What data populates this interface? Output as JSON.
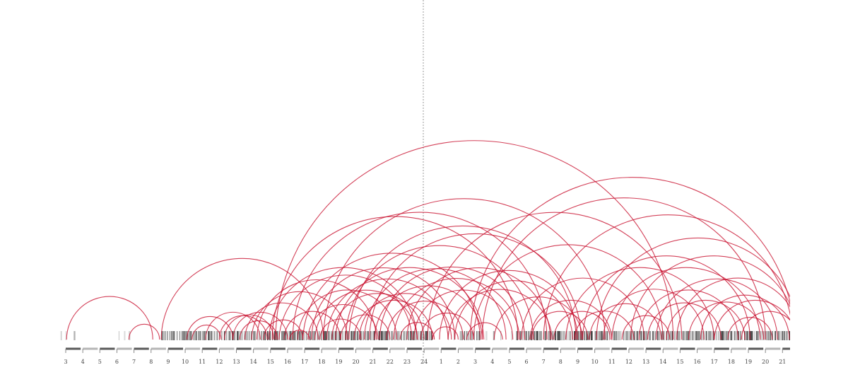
{
  "chart_data": {
    "type": "arc",
    "colors": {
      "arc": "#c8102e",
      "midline": "#9a9a9a",
      "axis_dark": "#5a5a5a",
      "axis_light": "#b5b5b5",
      "barcode": "#3a3a3a"
    },
    "hour_labels": [
      "3",
      "4",
      "5",
      "6",
      "7",
      "8",
      "9",
      "10",
      "11",
      "12",
      "13",
      "14",
      "15",
      "16",
      "17",
      "18",
      "19",
      "20",
      "21",
      "22",
      "23",
      "24",
      "1",
      "2",
      "3",
      "4",
      "5",
      "6",
      "7",
      "8",
      "9",
      "10",
      "11",
      "12",
      "13",
      "14",
      "15",
      "16",
      "17",
      "18",
      "19",
      "20",
      "21"
    ],
    "arcs": [
      [
        0.05,
        5.1
      ],
      [
        3.7,
        5.5
      ],
      [
        5.6,
        15.1
      ],
      [
        7.1,
        9.8
      ],
      [
        7.4,
        9.1
      ],
      [
        8.2,
        11.4
      ],
      [
        9.0,
        11.8
      ],
      [
        9.3,
        12.2
      ],
      [
        9.8,
        13.0
      ],
      [
        10.2,
        12.4
      ],
      [
        10.5,
        14.8
      ],
      [
        10.9,
        16.5
      ],
      [
        11.2,
        18.2
      ],
      [
        11.6,
        13.9
      ],
      [
        11.9,
        20.6
      ],
      [
        12.1,
        26.5
      ],
      [
        12.3,
        35.6
      ],
      [
        12.5,
        20.3
      ],
      [
        12.8,
        16.1
      ],
      [
        13.1,
        14.3
      ],
      [
        13.3,
        28.2
      ],
      [
        13.6,
        19.4
      ],
      [
        13.9,
        24.3
      ],
      [
        14.2,
        18.3
      ],
      [
        14.4,
        22.8
      ],
      [
        14.6,
        20.6
      ],
      [
        14.9,
        17.3
      ],
      [
        15.1,
        31.6
      ],
      [
        15.3,
        22.4
      ],
      [
        15.6,
        21.0
      ],
      [
        15.8,
        24.5
      ],
      [
        16.1,
        19.0
      ],
      [
        16.4,
        27.4
      ],
      [
        16.6,
        29.9
      ],
      [
        16.9,
        21.5
      ],
      [
        17.2,
        22.6
      ],
      [
        17.5,
        25.8
      ],
      [
        17.8,
        30.2
      ],
      [
        18.1,
        24.4
      ],
      [
        18.4,
        26.9
      ],
      [
        18.8,
        23.3
      ],
      [
        19.2,
        26.6
      ],
      [
        19.6,
        21.6
      ],
      [
        20.0,
        28.4
      ],
      [
        20.4,
        26.2
      ],
      [
        20.8,
        23.9
      ],
      [
        21.2,
        36.1
      ],
      [
        21.5,
        23.0
      ],
      [
        21.9,
        30.0
      ],
      [
        22.4,
        28.5
      ],
      [
        22.8,
        29.7
      ],
      [
        23.5,
        25.6
      ],
      [
        23.7,
        42.7
      ],
      [
        23.9,
        35.0
      ],
      [
        24.4,
        41.0
      ],
      [
        25.1,
        30.3
      ],
      [
        26.7,
        33.9
      ],
      [
        27.2,
        32.0
      ],
      [
        27.3,
        30.6
      ],
      [
        28.0,
        42.6
      ],
      [
        28.6,
        31.9
      ],
      [
        29.3,
        38.0
      ],
      [
        29.8,
        33.3
      ],
      [
        30.3,
        40.1
      ],
      [
        30.7,
        34.9
      ],
      [
        31.1,
        43.0
      ],
      [
        31.5,
        37.4
      ],
      [
        32.0,
        40.7
      ],
      [
        32.6,
        35.4
      ],
      [
        33.1,
        42.9
      ],
      [
        33.6,
        39.4
      ],
      [
        34.1,
        38.4
      ],
      [
        34.6,
        41.7
      ],
      [
        35.2,
        39.8
      ],
      [
        35.8,
        43.0
      ],
      [
        36.5,
        40.9
      ],
      [
        37.2,
        42.4
      ],
      [
        38.0,
        42.8
      ],
      [
        38.8,
        41.4
      ],
      [
        39.6,
        42.9
      ]
    ]
  }
}
